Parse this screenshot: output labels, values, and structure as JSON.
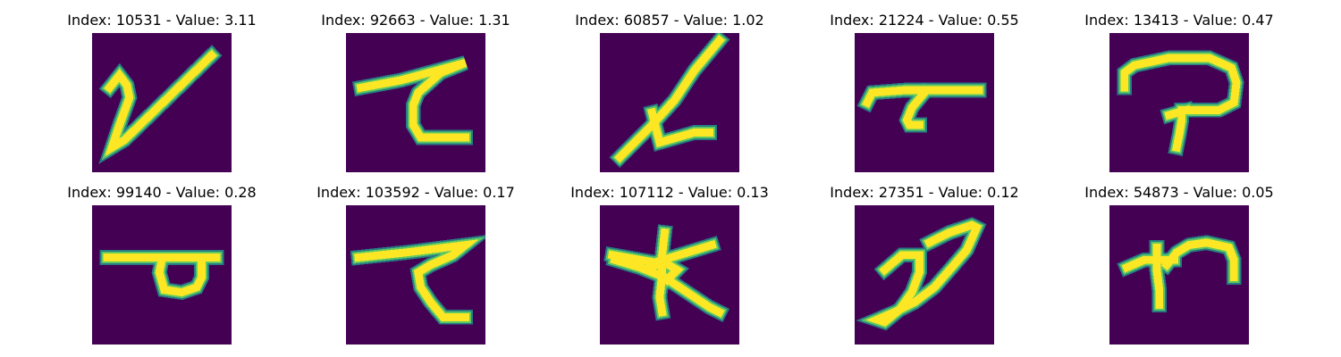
{
  "colors": {
    "background": "#440154",
    "mid": "#21918c",
    "light": "#5ec962",
    "stroke": "#fde725"
  },
  "panels": [
    {
      "title": "Index: 10531 - Value: 3.11"
    },
    {
      "title": "Index: 92663 - Value: 1.31"
    },
    {
      "title": "Index: 60857 - Value: 1.02"
    },
    {
      "title": "Index: 21224 - Value: 0.55"
    },
    {
      "title": "Index: 13413 - Value: 0.47"
    },
    {
      "title": "Index: 99140 - Value: 0.28"
    },
    {
      "title": "Index: 103592 - Value: 0.17"
    },
    {
      "title": "Index: 107112 - Value: 0.13"
    },
    {
      "title": "Index: 27351 - Value: 0.12"
    },
    {
      "title": "Index: 54873 - Value: 0.05"
    }
  ]
}
